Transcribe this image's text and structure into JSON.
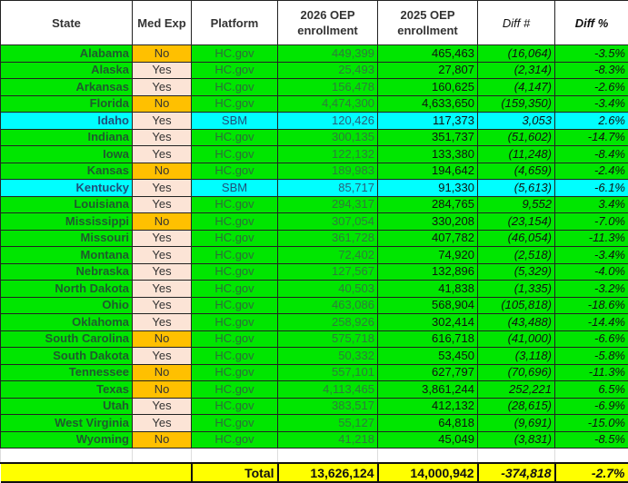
{
  "headers": {
    "state": "State",
    "med_exp": "Med Exp",
    "platform": "Platform",
    "oep2026": "2026 OEP enrollment",
    "oep2025": "2025 OEP enrollment",
    "diff_num": "Diff #",
    "diff_pct": "Diff %"
  },
  "colors": {
    "hcgov_row": "#00e600",
    "sbm_row": "#00ffff",
    "med_no": "#ffc000",
    "med_yes": "#fce4d6",
    "total_row": "#ffff00"
  },
  "rows": [
    {
      "state": "Alabama",
      "med": "No",
      "platform": "HC.gov",
      "oep2026": "449,399",
      "oep2025": "465,463",
      "diff": "(16,064)",
      "pct": "-3.5%"
    },
    {
      "state": "Alaska",
      "med": "Yes",
      "platform": "HC.gov",
      "oep2026": "25,493",
      "oep2025": "27,807",
      "diff": "(2,314)",
      "pct": "-8.3%"
    },
    {
      "state": "Arkansas",
      "med": "Yes",
      "platform": "HC.gov",
      "oep2026": "156,478",
      "oep2025": "160,625",
      "diff": "(4,147)",
      "pct": "-2.6%"
    },
    {
      "state": "Florida",
      "med": "No",
      "platform": "HC.gov",
      "oep2026": "4,474,300",
      "oep2025": "4,633,650",
      "diff": "(159,350)",
      "pct": "-3.4%"
    },
    {
      "state": "Idaho",
      "med": "Yes",
      "platform": "SBM",
      "oep2026": "120,426",
      "oep2025": "117,373",
      "diff": "3,053",
      "pct": "2.6%"
    },
    {
      "state": "Indiana",
      "med": "Yes",
      "platform": "HC.gov",
      "oep2026": "300,135",
      "oep2025": "351,737",
      "diff": "(51,602)",
      "pct": "-14.7%"
    },
    {
      "state": "Iowa",
      "med": "Yes",
      "platform": "HC.gov",
      "oep2026": "122,132",
      "oep2025": "133,380",
      "diff": "(11,248)",
      "pct": "-8.4%"
    },
    {
      "state": "Kansas",
      "med": "No",
      "platform": "HC.gov",
      "oep2026": "189,983",
      "oep2025": "194,642",
      "diff": "(4,659)",
      "pct": "-2.4%"
    },
    {
      "state": "Kentucky",
      "med": "Yes",
      "platform": "SBM",
      "oep2026": "85,717",
      "oep2025": "91,330",
      "diff": "(5,613)",
      "pct": "-6.1%"
    },
    {
      "state": "Louisiana",
      "med": "Yes",
      "platform": "HC.gov",
      "oep2026": "294,317",
      "oep2025": "284,765",
      "diff": "9,552",
      "pct": "3.4%"
    },
    {
      "state": "Mississippi",
      "med": "No",
      "platform": "HC.gov",
      "oep2026": "307,054",
      "oep2025": "330,208",
      "diff": "(23,154)",
      "pct": "-7.0%"
    },
    {
      "state": "Missouri",
      "med": "Yes",
      "platform": "HC.gov",
      "oep2026": "361,728",
      "oep2025": "407,782",
      "diff": "(46,054)",
      "pct": "-11.3%"
    },
    {
      "state": "Montana",
      "med": "Yes",
      "platform": "HC.gov",
      "oep2026": "72,402",
      "oep2025": "74,920",
      "diff": "(2,518)",
      "pct": "-3.4%"
    },
    {
      "state": "Nebraska",
      "med": "Yes",
      "platform": "HC.gov",
      "oep2026": "127,567",
      "oep2025": "132,896",
      "diff": "(5,329)",
      "pct": "-4.0%"
    },
    {
      "state": "North Dakota",
      "med": "Yes",
      "platform": "HC.gov",
      "oep2026": "40,503",
      "oep2025": "41,838",
      "diff": "(1,335)",
      "pct": "-3.2%"
    },
    {
      "state": "Ohio",
      "med": "Yes",
      "platform": "HC.gov",
      "oep2026": "463,086",
      "oep2025": "568,904",
      "diff": "(105,818)",
      "pct": "-18.6%"
    },
    {
      "state": "Oklahoma",
      "med": "Yes",
      "platform": "HC.gov",
      "oep2026": "258,926",
      "oep2025": "302,414",
      "diff": "(43,488)",
      "pct": "-14.4%"
    },
    {
      "state": "South Carolina",
      "med": "No",
      "platform": "HC.gov",
      "oep2026": "575,718",
      "oep2025": "616,718",
      "diff": "(41,000)",
      "pct": "-6.6%"
    },
    {
      "state": "South Dakota",
      "med": "Yes",
      "platform": "HC.gov",
      "oep2026": "50,332",
      "oep2025": "53,450",
      "diff": "(3,118)",
      "pct": "-5.8%"
    },
    {
      "state": "Tennessee",
      "med": "No",
      "platform": "HC.gov",
      "oep2026": "557,101",
      "oep2025": "627,797",
      "diff": "(70,696)",
      "pct": "-11.3%"
    },
    {
      "state": "Texas",
      "med": "No",
      "platform": "HC.gov",
      "oep2026": "4,113,465",
      "oep2025": "3,861,244",
      "diff": "252,221",
      "pct": "6.5%"
    },
    {
      "state": "Utah",
      "med": "Yes",
      "platform": "HC.gov",
      "oep2026": "383,517",
      "oep2025": "412,132",
      "diff": "(28,615)",
      "pct": "-6.9%"
    },
    {
      "state": "West Virginia",
      "med": "Yes",
      "platform": "HC.gov",
      "oep2026": "55,127",
      "oep2025": "64,818",
      "diff": "(9,691)",
      "pct": "-15.0%"
    },
    {
      "state": "Wyoming",
      "med": "No",
      "platform": "HC.gov",
      "oep2026": "41,218",
      "oep2025": "45,049",
      "diff": "(3,831)",
      "pct": "-8.5%"
    }
  ],
  "total": {
    "label": "Total",
    "oep2026": "13,626,124",
    "oep2025": "14,000,942",
    "diff": "-374,818",
    "pct": "-2.7%"
  }
}
